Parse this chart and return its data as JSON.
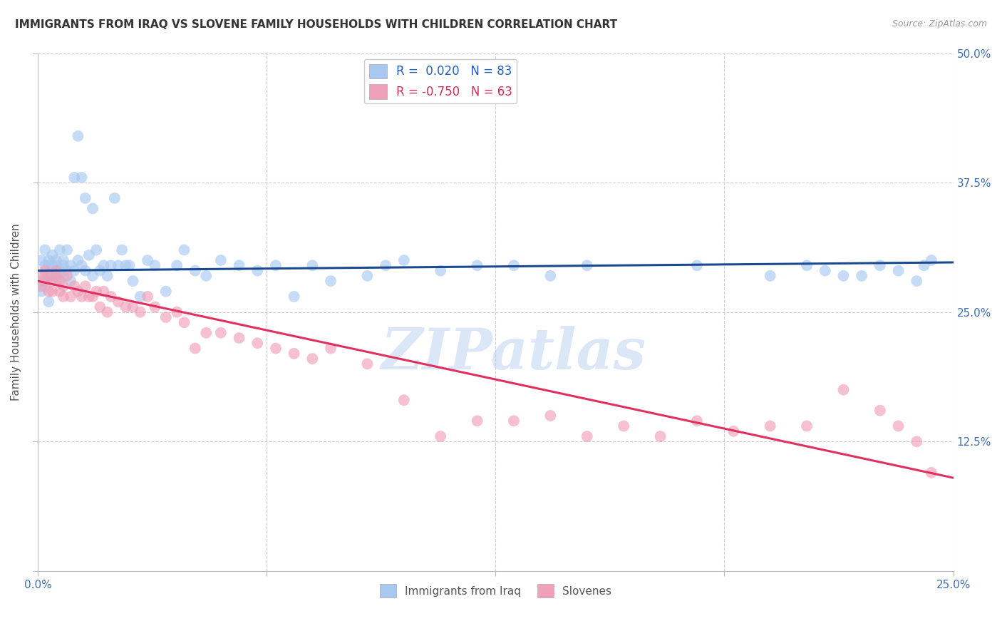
{
  "title": "IMMIGRANTS FROM IRAQ VS SLOVENE FAMILY HOUSEHOLDS WITH CHILDREN CORRELATION CHART",
  "source": "Source: ZipAtlas.com",
  "ylabel": "Family Households with Children",
  "xlim": [
    0.0,
    0.25
  ],
  "ylim": [
    0.0,
    0.5
  ],
  "legend_iraq_R": "0.020",
  "legend_iraq_N": "83",
  "legend_slovene_R": "-0.750",
  "legend_slovene_N": "63",
  "blue_color": "#A8C8F0",
  "blue_line_color": "#1A4A90",
  "pink_color": "#F0A0B8",
  "pink_line_color": "#E03060",
  "watermark": "ZIPatlas",
  "iraq_x": [
    0.001,
    0.001,
    0.001,
    0.002,
    0.002,
    0.002,
    0.002,
    0.003,
    0.003,
    0.003,
    0.003,
    0.004,
    0.004,
    0.004,
    0.005,
    0.005,
    0.005,
    0.006,
    0.006,
    0.006,
    0.007,
    0.007,
    0.007,
    0.008,
    0.008,
    0.009,
    0.009,
    0.01,
    0.01,
    0.011,
    0.011,
    0.012,
    0.012,
    0.013,
    0.013,
    0.014,
    0.015,
    0.015,
    0.016,
    0.017,
    0.018,
    0.019,
    0.02,
    0.021,
    0.022,
    0.023,
    0.024,
    0.025,
    0.026,
    0.028,
    0.03,
    0.032,
    0.035,
    0.038,
    0.04,
    0.043,
    0.046,
    0.05,
    0.055,
    0.06,
    0.065,
    0.07,
    0.075,
    0.08,
    0.09,
    0.095,
    0.1,
    0.11,
    0.12,
    0.13,
    0.14,
    0.15,
    0.18,
    0.2,
    0.21,
    0.215,
    0.22,
    0.225,
    0.23,
    0.235,
    0.24,
    0.242,
    0.244
  ],
  "iraq_y": [
    0.28,
    0.27,
    0.3,
    0.31,
    0.295,
    0.285,
    0.275,
    0.3,
    0.285,
    0.295,
    0.26,
    0.305,
    0.285,
    0.295,
    0.28,
    0.3,
    0.295,
    0.29,
    0.285,
    0.31,
    0.295,
    0.3,
    0.285,
    0.29,
    0.31,
    0.295,
    0.28,
    0.29,
    0.38,
    0.3,
    0.42,
    0.295,
    0.38,
    0.29,
    0.36,
    0.305,
    0.285,
    0.35,
    0.31,
    0.29,
    0.295,
    0.285,
    0.295,
    0.36,
    0.295,
    0.31,
    0.295,
    0.295,
    0.28,
    0.265,
    0.3,
    0.295,
    0.27,
    0.295,
    0.31,
    0.29,
    0.285,
    0.3,
    0.295,
    0.29,
    0.295,
    0.265,
    0.295,
    0.28,
    0.285,
    0.295,
    0.3,
    0.29,
    0.295,
    0.295,
    0.285,
    0.295,
    0.295,
    0.285,
    0.295,
    0.29,
    0.285,
    0.285,
    0.295,
    0.29,
    0.28,
    0.295,
    0.3
  ],
  "slovene_x": [
    0.001,
    0.001,
    0.002,
    0.002,
    0.003,
    0.003,
    0.004,
    0.004,
    0.005,
    0.005,
    0.006,
    0.006,
    0.007,
    0.007,
    0.008,
    0.009,
    0.01,
    0.011,
    0.012,
    0.013,
    0.014,
    0.015,
    0.016,
    0.017,
    0.018,
    0.019,
    0.02,
    0.022,
    0.024,
    0.026,
    0.028,
    0.03,
    0.032,
    0.035,
    0.038,
    0.04,
    0.043,
    0.046,
    0.05,
    0.055,
    0.06,
    0.065,
    0.07,
    0.075,
    0.08,
    0.09,
    0.1,
    0.11,
    0.12,
    0.13,
    0.14,
    0.15,
    0.16,
    0.17,
    0.18,
    0.19,
    0.2,
    0.21,
    0.22,
    0.23,
    0.235,
    0.24,
    0.244
  ],
  "slovene_y": [
    0.285,
    0.275,
    0.29,
    0.28,
    0.27,
    0.285,
    0.28,
    0.27,
    0.29,
    0.285,
    0.28,
    0.27,
    0.275,
    0.265,
    0.285,
    0.265,
    0.275,
    0.27,
    0.265,
    0.275,
    0.265,
    0.265,
    0.27,
    0.255,
    0.27,
    0.25,
    0.265,
    0.26,
    0.255,
    0.255,
    0.25,
    0.265,
    0.255,
    0.245,
    0.25,
    0.24,
    0.215,
    0.23,
    0.23,
    0.225,
    0.22,
    0.215,
    0.21,
    0.205,
    0.215,
    0.2,
    0.165,
    0.13,
    0.145,
    0.145,
    0.15,
    0.13,
    0.14,
    0.13,
    0.145,
    0.135,
    0.14,
    0.14,
    0.175,
    0.155,
    0.14,
    0.125,
    0.095
  ]
}
